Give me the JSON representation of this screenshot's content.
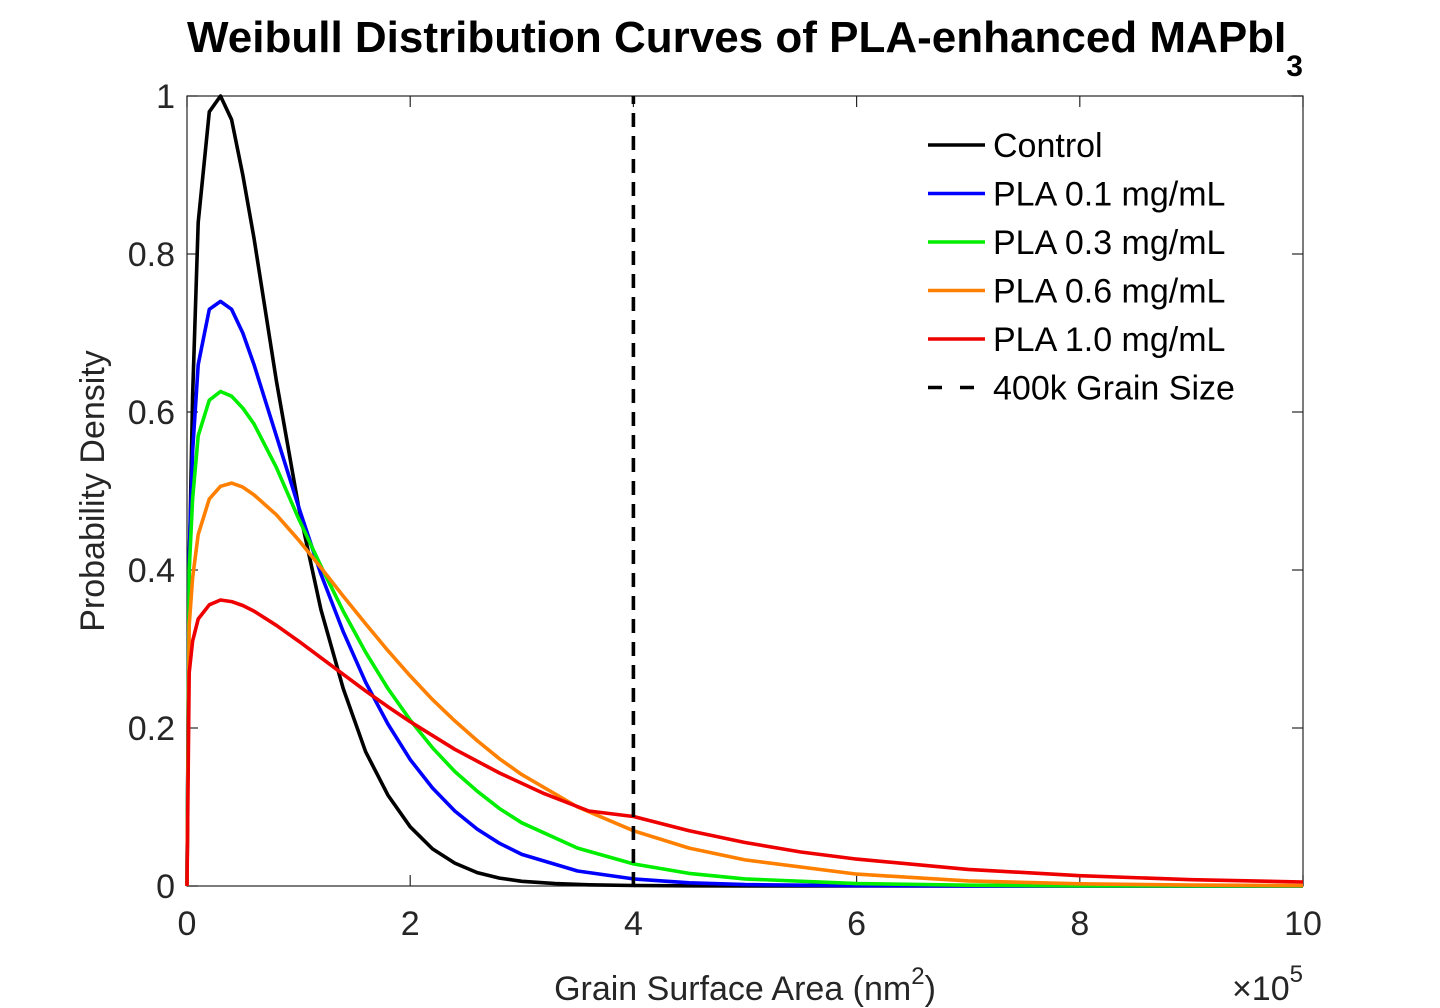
{
  "chart_data": {
    "type": "line",
    "title": "Weibull Distribution Curves of PLA-enhanced MAPbI",
    "title_subscript": "3",
    "xlabel": "Grain Surface Area (nm",
    "xlabel_superscript": "2",
    "xlabel_suffix": ")",
    "ylabel": "Probability Density",
    "x_exponent_prefix": "×10",
    "x_exponent": "5",
    "xlim": [
      0,
      10
    ],
    "ylim": [
      0,
      1
    ],
    "x_ticks": [
      0,
      2,
      4,
      6,
      8,
      10
    ],
    "x_tick_labels": [
      "0",
      "2",
      "4",
      "6",
      "8",
      "10"
    ],
    "y_ticks": [
      0,
      0.2,
      0.4,
      0.6,
      0.8,
      1
    ],
    "y_tick_labels": [
      "0",
      "0.2",
      "0.4",
      "0.6",
      "0.8",
      "1"
    ],
    "grid": false,
    "legend_position": "top-right",
    "series": [
      {
        "name": "Control",
        "color": "#000000",
        "style": "solid",
        "x": [
          0,
          0.02,
          0.05,
          0.1,
          0.2,
          0.3,
          0.4,
          0.5,
          0.6,
          0.8,
          1.0,
          1.2,
          1.4,
          1.6,
          1.8,
          2.0,
          2.2,
          2.4,
          2.6,
          2.8,
          3.0,
          3.3,
          3.6,
          4.0,
          4.5,
          5.0,
          6.0,
          8.0,
          10.0
        ],
        "y": [
          0,
          0.4,
          0.62,
          0.84,
          0.98,
          1.0,
          0.97,
          0.9,
          0.82,
          0.64,
          0.48,
          0.35,
          0.25,
          0.17,
          0.115,
          0.075,
          0.047,
          0.029,
          0.017,
          0.01,
          0.006,
          0.003,
          0.0015,
          0.0006,
          0.0002,
          0.0001,
          0,
          0,
          0
        ]
      },
      {
        "name": "PLA 0.1 mg/mL",
        "color": "#0000ff",
        "style": "solid",
        "x": [
          0,
          0.02,
          0.05,
          0.1,
          0.2,
          0.3,
          0.4,
          0.5,
          0.6,
          0.8,
          1.0,
          1.2,
          1.4,
          1.6,
          1.8,
          2.0,
          2.2,
          2.4,
          2.6,
          2.8,
          3.0,
          3.5,
          4.0,
          4.5,
          5.0,
          6.0,
          7.0,
          8.0,
          10.0
        ],
        "y": [
          0,
          0.42,
          0.55,
          0.66,
          0.73,
          0.74,
          0.73,
          0.7,
          0.66,
          0.57,
          0.48,
          0.395,
          0.322,
          0.258,
          0.205,
          0.16,
          0.124,
          0.095,
          0.072,
          0.054,
          0.04,
          0.019,
          0.009,
          0.004,
          0.0018,
          0.0004,
          0.0001,
          0,
          0
        ]
      },
      {
        "name": "PLA 0.3 mg/mL",
        "color": "#00ee00",
        "style": "solid",
        "x": [
          0,
          0.02,
          0.05,
          0.1,
          0.2,
          0.3,
          0.4,
          0.5,
          0.6,
          0.8,
          1.0,
          1.2,
          1.4,
          1.6,
          1.8,
          2.0,
          2.2,
          2.4,
          2.6,
          2.8,
          3.0,
          3.5,
          4.0,
          4.5,
          5.0,
          6.0,
          7.0,
          8.0,
          10.0
        ],
        "y": [
          0,
          0.4,
          0.49,
          0.57,
          0.615,
          0.626,
          0.62,
          0.605,
          0.585,
          0.53,
          0.465,
          0.405,
          0.348,
          0.296,
          0.25,
          0.21,
          0.175,
          0.145,
          0.12,
          0.098,
          0.08,
          0.048,
          0.028,
          0.016,
          0.009,
          0.003,
          0.001,
          0.0003,
          0
        ]
      },
      {
        "name": "PLA 0.6 mg/mL",
        "color": "#ff8000",
        "style": "solid",
        "x": [
          0,
          0.02,
          0.05,
          0.1,
          0.2,
          0.3,
          0.4,
          0.5,
          0.6,
          0.8,
          1.0,
          1.2,
          1.4,
          1.6,
          1.8,
          2.0,
          2.2,
          2.4,
          2.6,
          2.8,
          3.0,
          3.5,
          4.0,
          4.5,
          5.0,
          6.0,
          7.0,
          8.0,
          9.0,
          10.0
        ],
        "y": [
          0,
          0.33,
          0.39,
          0.445,
          0.49,
          0.506,
          0.51,
          0.505,
          0.495,
          0.47,
          0.438,
          0.403,
          0.367,
          0.332,
          0.298,
          0.266,
          0.236,
          0.209,
          0.184,
          0.161,
          0.141,
          0.1,
          0.07,
          0.048,
          0.033,
          0.015,
          0.0065,
          0.0028,
          0.0012,
          0.0005
        ]
      },
      {
        "name": "PLA 1.0 mg/mL",
        "color": "#ee0000",
        "style": "solid",
        "x": [
          0,
          0.02,
          0.05,
          0.1,
          0.2,
          0.3,
          0.4,
          0.5,
          0.6,
          0.8,
          1.0,
          1.2,
          1.4,
          1.6,
          1.8,
          2.0,
          2.4,
          2.8,
          3.2,
          3.6,
          4.0,
          4.5,
          5.0,
          5.5,
          6.0,
          7.0,
          8.0,
          9.0,
          10.0
        ],
        "y": [
          0,
          0.27,
          0.31,
          0.338,
          0.356,
          0.362,
          0.36,
          0.355,
          0.348,
          0.33,
          0.31,
          0.289,
          0.268,
          0.247,
          0.227,
          0.208,
          0.173,
          0.143,
          0.117,
          0.095,
          0.088,
          0.07,
          0.055,
          0.043,
          0.034,
          0.021,
          0.013,
          0.008,
          0.005
        ]
      },
      {
        "name": "400k Grain Size",
        "color": "#000000",
        "style": "dashed",
        "x": [
          4,
          4
        ],
        "y": [
          0,
          1
        ]
      }
    ]
  }
}
